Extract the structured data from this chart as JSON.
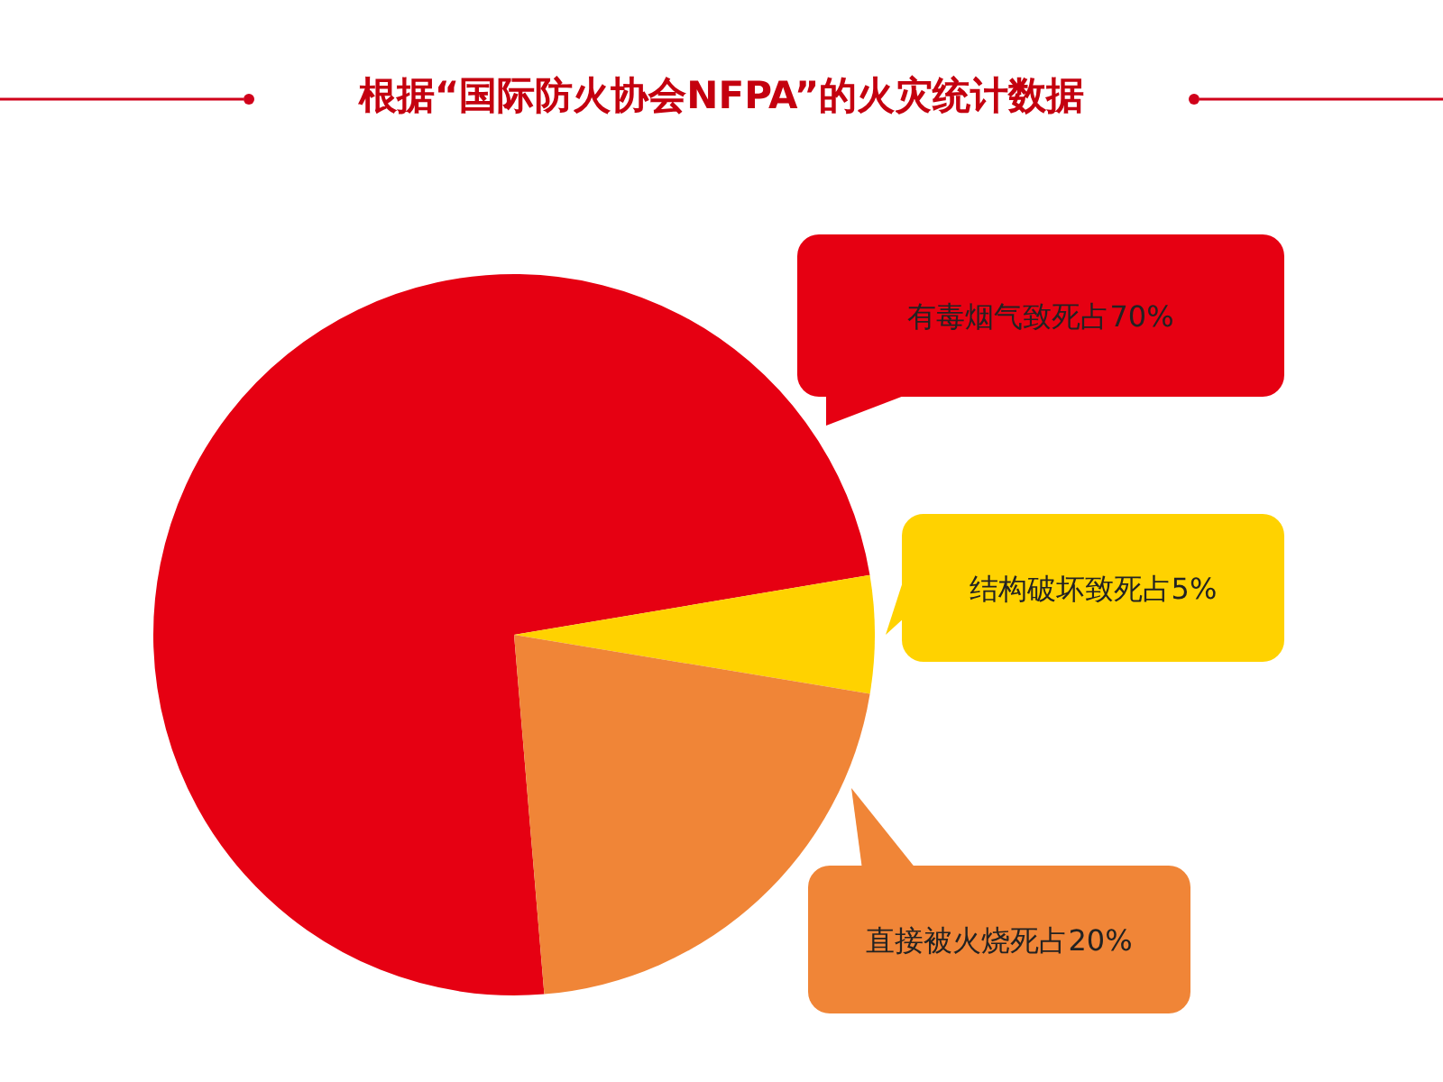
{
  "chart_data": {
    "type": "pie",
    "title": "根据“国际防火协会NFPA”的火灾统计数据",
    "categories": [
      "有毒烟气致死占70%",
      "结构破坏致死占5%",
      "直接被火烧死占20%"
    ],
    "values": [
      70,
      5,
      20
    ],
    "colors": [
      "#e60012",
      "#ffd200",
      "#f08537"
    ]
  }
}
